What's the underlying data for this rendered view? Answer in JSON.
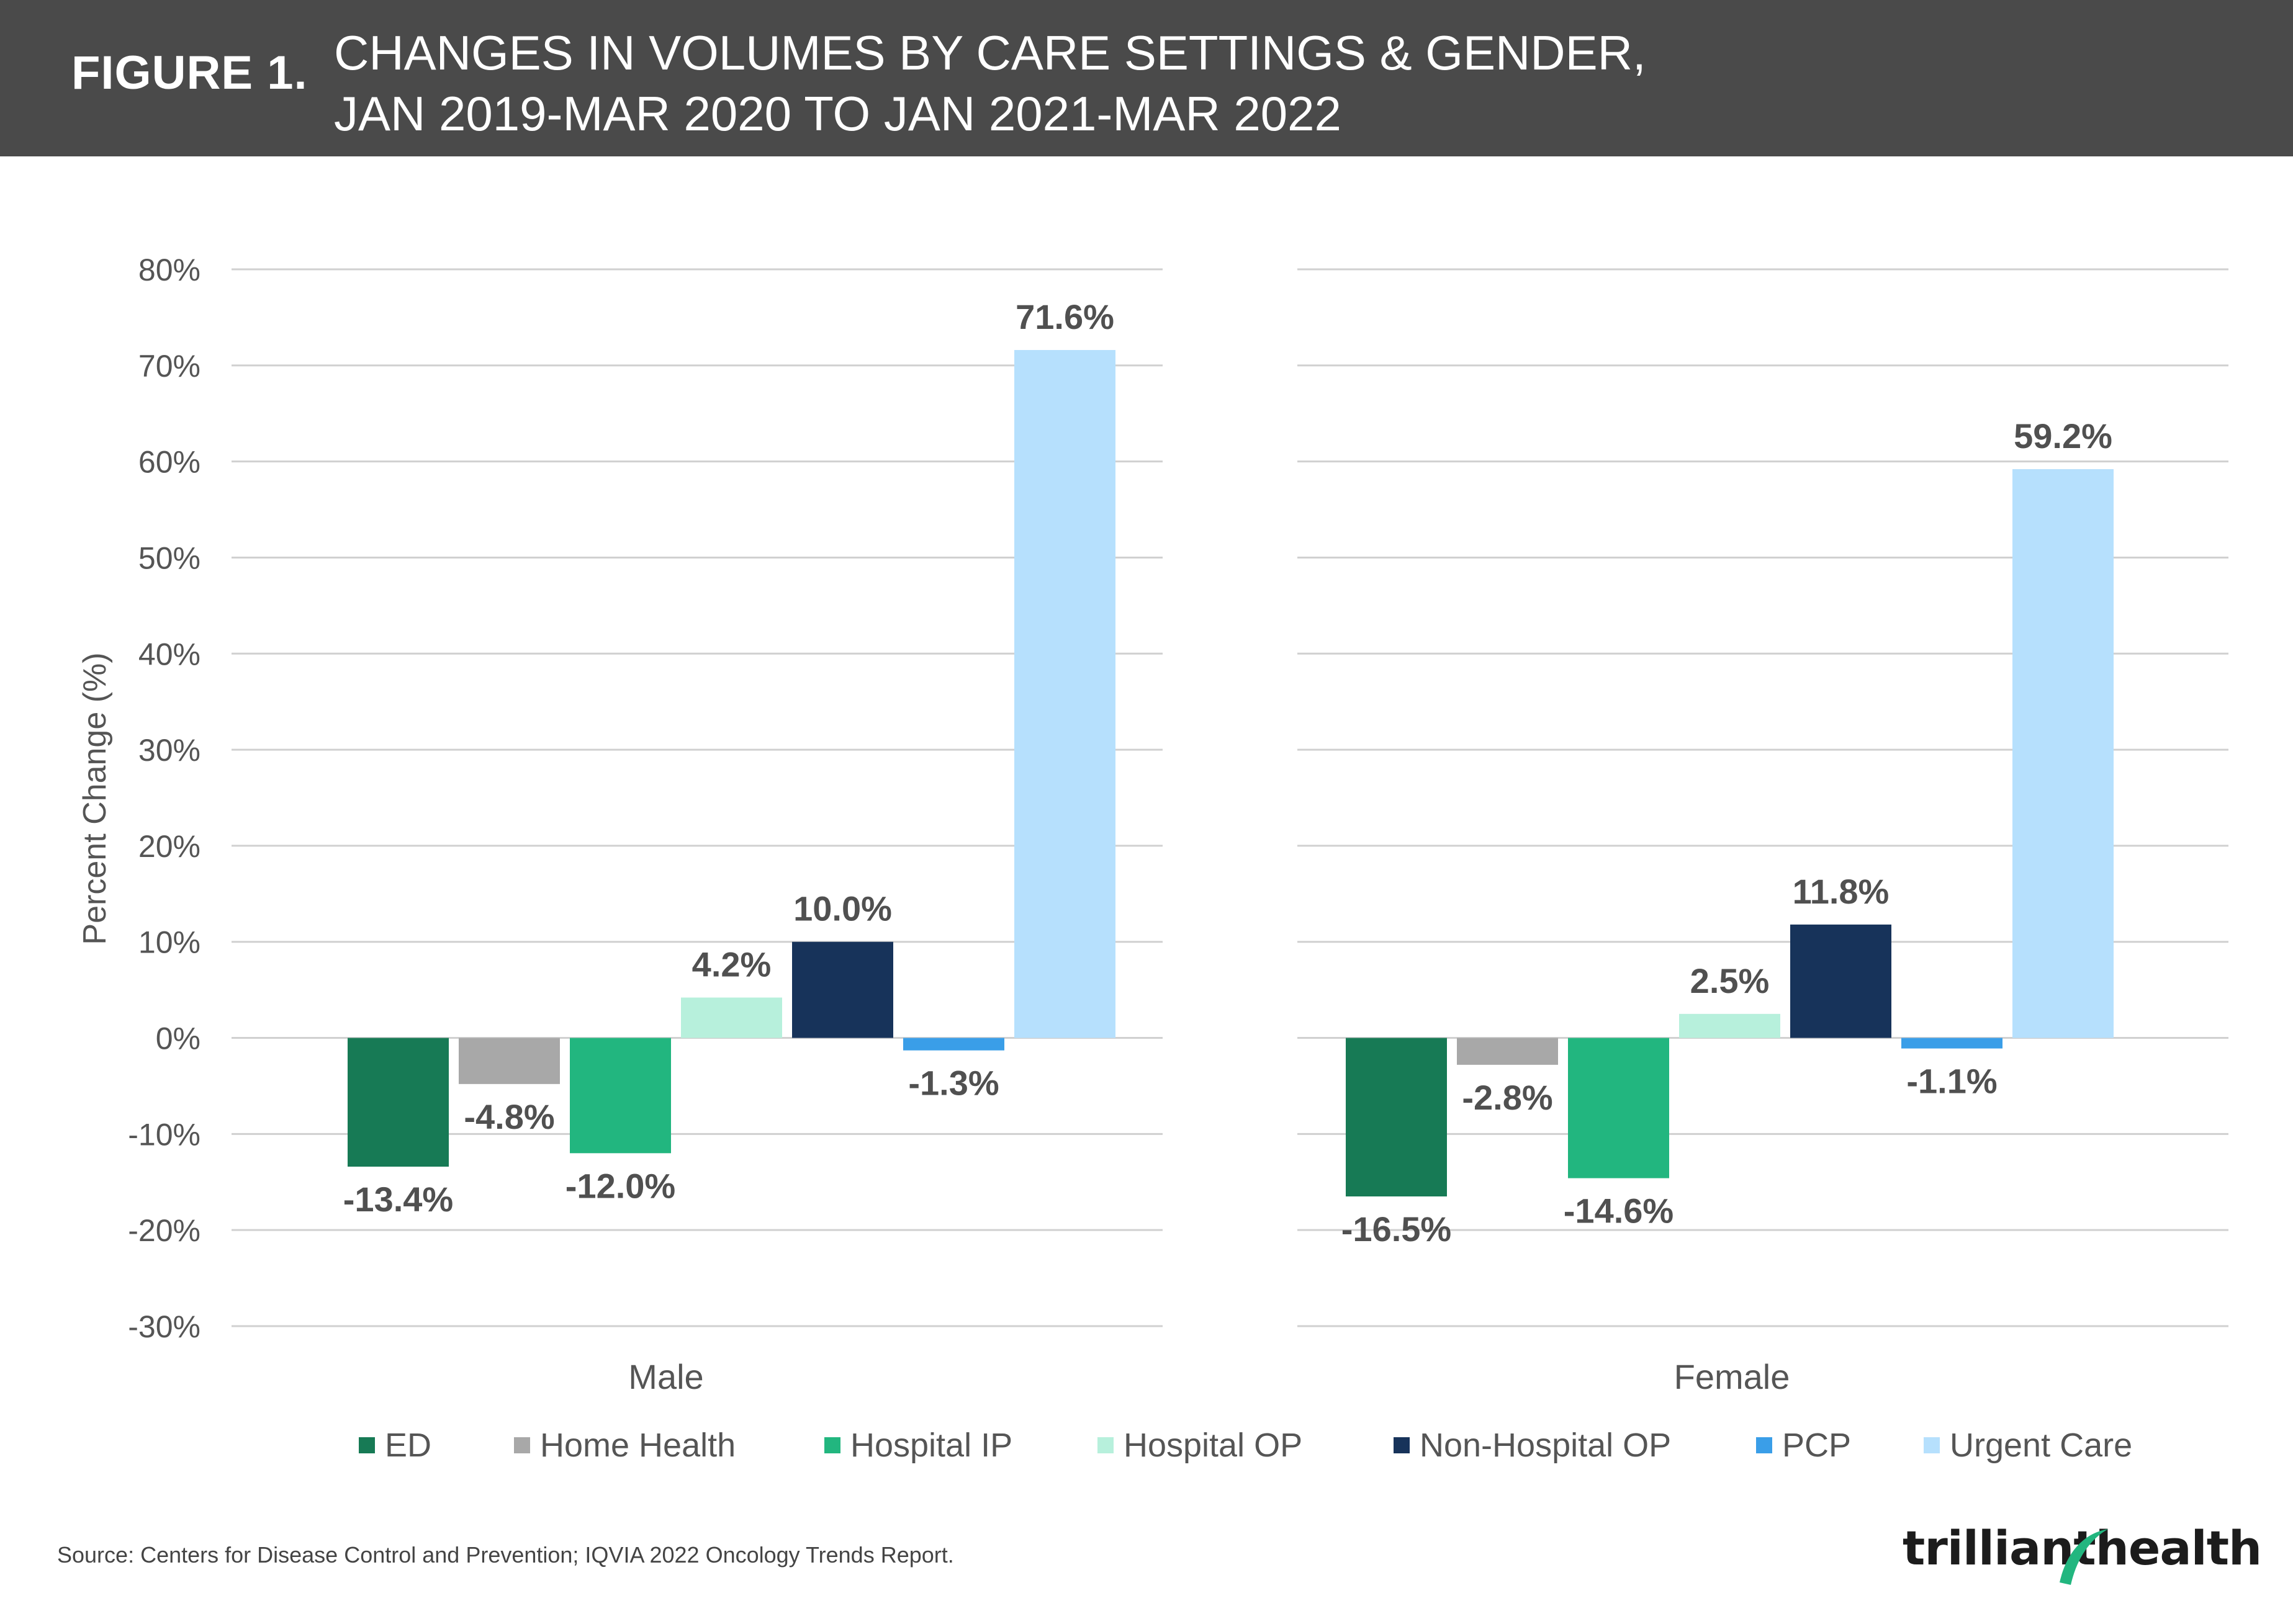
{
  "header": {
    "figure_label": "FIGURE 1.",
    "title_line1": "CHANGES IN VOLUMES BY CARE SETTINGS & GENDER,",
    "title_line2": "JAN 2019-MAR 2020 TO JAN 2021-MAR 2022"
  },
  "chart_data": {
    "type": "bar",
    "title": "CHANGES IN VOLUMES BY CARE SETTINGS & GENDER, JAN 2019-MAR 2020 TO JAN 2021-MAR 2022",
    "xlabel": "",
    "ylabel": "Percent Change (%)",
    "ylim": [
      -30,
      80
    ],
    "yticks": [
      80,
      70,
      60,
      50,
      40,
      30,
      20,
      10,
      0,
      -10,
      -20,
      -30
    ],
    "ytick_labels": [
      "80%",
      "70%",
      "60%",
      "50%",
      "40%",
      "30%",
      "20%",
      "10%",
      "0%",
      "-10%",
      "-20%",
      "-30%"
    ],
    "grid": true,
    "legend_position": "bottom",
    "categories": [
      "Male",
      "Female"
    ],
    "series": [
      {
        "name": "ED",
        "color": "#177a55",
        "values": [
          -13.4,
          -16.5
        ],
        "labels": [
          "-13.4%",
          "-16.5%"
        ]
      },
      {
        "name": "Home Health",
        "color": "#a8a8a8",
        "values": [
          -4.8,
          -2.8
        ],
        "labels": [
          "-4.8%",
          "-2.8%"
        ]
      },
      {
        "name": "Hospital IP",
        "color": "#22b67f",
        "values": [
          -12.0,
          -14.6
        ],
        "labels": [
          "-12.0%",
          "-14.6%"
        ]
      },
      {
        "name": "Hospital OP",
        "color": "#b7f0dc",
        "values": [
          4.2,
          2.5
        ],
        "labels": [
          "4.2%",
          "2.5%"
        ]
      },
      {
        "name": "Non-Hospital OP",
        "color": "#17335a",
        "values": [
          10.0,
          11.8
        ],
        "labels": [
          "10.0%",
          "11.8%"
        ]
      },
      {
        "name": "PCP",
        "color": "#3a9ee8",
        "values": [
          -1.3,
          -1.1
        ],
        "labels": [
          "-1.3%",
          "-1.1%"
        ]
      },
      {
        "name": "Urgent Care",
        "color": "#b6e0fd",
        "values": [
          71.6,
          59.2
        ],
        "labels": [
          "71.6%",
          "59.2%"
        ]
      }
    ]
  },
  "footer": {
    "source": "Source: Centers for Disease Control and Prevention; IQVIA 2022 Oncology Trends Report.",
    "logo_text_left": "trilliant",
    "logo_text_right": "health"
  }
}
